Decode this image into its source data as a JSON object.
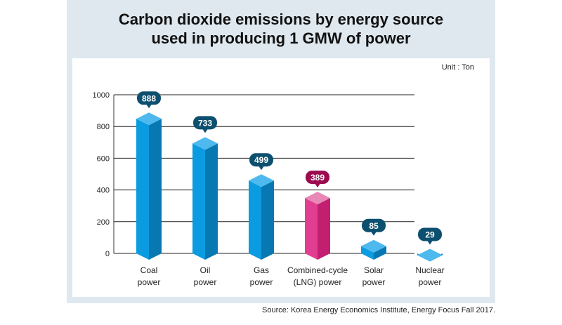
{
  "chart_data": {
    "type": "bar",
    "title": "Carbon dioxide emissions by energy source used in producing 1 GMW of power",
    "title_lines": [
      "Carbon dioxide emissions by energy source",
      "used in producing 1 GMW of power"
    ],
    "unit": "Unit : Ton",
    "source": "Source: Korea Energy Economics Institute, Energy Focus Fall 2017.",
    "categories": [
      [
        "Coal",
        "power"
      ],
      [
        "Oil",
        "power"
      ],
      [
        "Gas",
        "power"
      ],
      [
        "Combined-cycle",
        "(LNG) power"
      ],
      [
        "Solar",
        "power"
      ],
      [
        "Nuclear",
        "power"
      ]
    ],
    "values": [
      888,
      733,
      499,
      389,
      85,
      29
    ],
    "highlight_index": 3,
    "ylim": [
      0,
      1000
    ],
    "yticks": [
      0,
      200,
      400,
      600,
      800,
      1000
    ],
    "grid": true,
    "colors": {
      "bar_front": "#0a9be0",
      "bar_side": "#0778b2",
      "bar_top": "#4db9ee",
      "hl_front": "#e23e91",
      "hl_side": "#c21f70",
      "hl_top": "#e888b7",
      "label_bg": "#0d4f6e",
      "hl_label_bg": "#9c0b4f",
      "frame": "#dfe8ef"
    }
  }
}
